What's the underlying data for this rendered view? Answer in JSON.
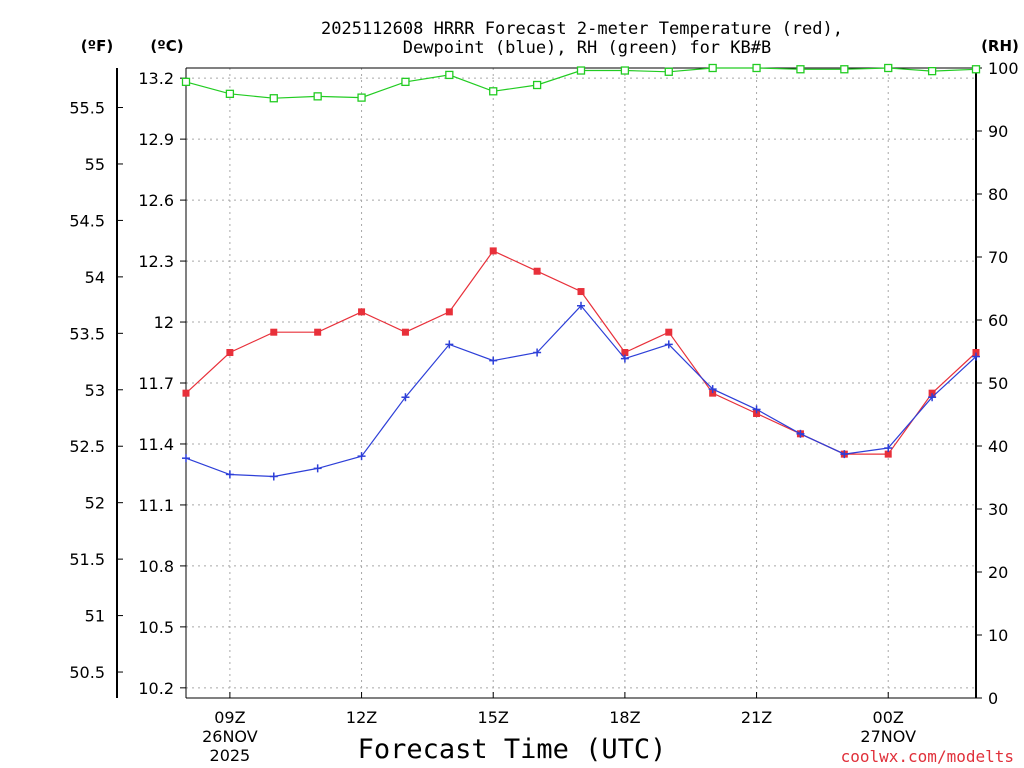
{
  "chart_data": {
    "type": "line",
    "title_line1": "2025112608 HRRR Forecast 2-meter Temperature (red),",
    "title_line2": "Dewpoint (blue), RH (green) for KB#B",
    "unit_f": "(ºF)",
    "unit_c": "(ºC)",
    "unit_rh": "(RH)",
    "xlabel": "Forecast Time (UTC)",
    "credit": "coolwx.com/modelts",
    "x": [
      8,
      9,
      10,
      11,
      12,
      13,
      14,
      15,
      16,
      17,
      18,
      19,
      20,
      21,
      22,
      23,
      24,
      25,
      26
    ],
    "xlim": [
      8,
      26
    ],
    "x_ticks": [
      {
        "x": 9,
        "l1": "09Z",
        "l2": "26NOV",
        "l3": "2025"
      },
      {
        "x": 12,
        "l1": "12Z",
        "l2": "",
        "l3": ""
      },
      {
        "x": 15,
        "l1": "15Z",
        "l2": "",
        "l3": ""
      },
      {
        "x": 18,
        "l1": "18Z",
        "l2": "",
        "l3": ""
      },
      {
        "x": 21,
        "l1": "21Z",
        "l2": "",
        "l3": ""
      },
      {
        "x": 24,
        "l1": "00Z",
        "l2": "27NOV",
        "l3": ""
      }
    ],
    "c_axis": {
      "range": [
        10.15,
        13.25
      ],
      "ticks": [
        10.2,
        10.5,
        10.8,
        11.1,
        11.4,
        11.7,
        12,
        12.3,
        12.6,
        12.9,
        13.2
      ],
      "tick_labels": [
        "10.2",
        "10.5",
        "10.8",
        "11.1",
        "11.4",
        "11.7",
        "12",
        "12.3",
        "12.6",
        "12.9",
        "13.2"
      ]
    },
    "f_axis": {
      "ticks": [
        50.5,
        51,
        51.5,
        52,
        52.5,
        53,
        53.5,
        54,
        54.5,
        55,
        55.5
      ],
      "tick_labels": [
        "50.5",
        "51",
        "51.5",
        "52",
        "52.5",
        "53",
        "53.5",
        "54",
        "54.5",
        "55",
        "55.5"
      ]
    },
    "rh_axis": {
      "range": [
        0,
        100
      ],
      "ticks": [
        0,
        10,
        20,
        30,
        40,
        50,
        60,
        70,
        80,
        90,
        100
      ],
      "tick_labels": [
        "0",
        "10",
        "20",
        "30",
        "40",
        "50",
        "60",
        "70",
        "80",
        "90",
        "100"
      ]
    },
    "series": [
      {
        "name": "Temperature",
        "axis": "c",
        "color": "#e8303a",
        "marker": "filled-square",
        "values": [
          11.65,
          11.85,
          11.95,
          11.95,
          12.05,
          11.95,
          12.05,
          12.35,
          12.25,
          12.15,
          11.85,
          11.95,
          11.65,
          11.55,
          11.45,
          11.35,
          11.35,
          11.65,
          11.85
        ]
      },
      {
        "name": "Dewpoint",
        "axis": "c",
        "color": "#2d3fd8",
        "marker": "plus",
        "values": [
          11.33,
          11.25,
          11.24,
          11.28,
          11.34,
          11.63,
          11.89,
          11.81,
          11.85,
          12.08,
          11.82,
          11.89,
          11.67,
          11.57,
          11.45,
          11.35,
          11.38,
          11.63,
          11.83
        ]
      },
      {
        "name": "RH",
        "axis": "rh",
        "color": "#22cc22",
        "marker": "open-square",
        "values": [
          97.8,
          95.9,
          95.2,
          95.5,
          95.3,
          97.8,
          98.9,
          96.3,
          97.3,
          99.6,
          99.6,
          99.4,
          100,
          100,
          99.8,
          99.8,
          100,
          99.5,
          99.8
        ]
      }
    ]
  }
}
